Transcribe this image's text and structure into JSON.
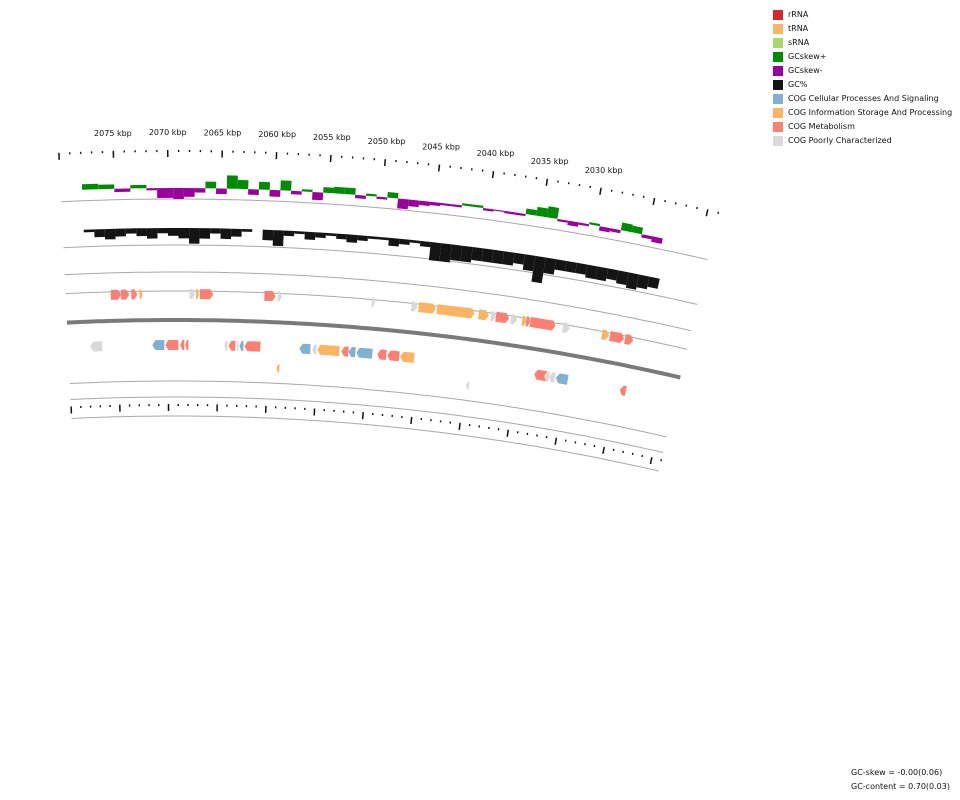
{
  "legend": [
    {
      "label": "rRNA",
      "color": "#d62728"
    },
    {
      "label": "tRNA",
      "color": "#fdb462"
    },
    {
      "label": "sRNA",
      "color": "#a6d96a"
    },
    {
      "label": "GCskew+",
      "color": "#008c00"
    },
    {
      "label": "GCskew-",
      "color": "#99009c"
    },
    {
      "label": "GC%",
      "color": "#141414"
    },
    {
      "label": "COG Cellular Processes And Signaling",
      "color": "#80b1d3"
    },
    {
      "label": "COG Information Storage And Processing",
      "color": "#fdb462"
    },
    {
      "label": "COG Metabolism",
      "color": "#fb8072"
    },
    {
      "label": "COG Poorly Characterized",
      "color": "#d9d9d9"
    }
  ],
  "ticks": [
    {
      "label": "2075 kbp",
      "pos": 2075
    },
    {
      "label": "2070 kbp",
      "pos": 2070
    },
    {
      "label": "2065 kbp",
      "pos": 2065
    },
    {
      "label": "2060 kbp",
      "pos": 2060
    },
    {
      "label": "2055 kbp",
      "pos": 2055
    },
    {
      "label": "2050 kbp",
      "pos": 2050
    },
    {
      "label": "2045 kbp",
      "pos": 2045
    },
    {
      "label": "2040 kbp",
      "pos": 2040
    },
    {
      "label": "2035 kbp",
      "pos": 2035
    },
    {
      "label": "2030 kbp",
      "pos": 2030
    }
  ],
  "features": {
    "forward": [
      {
        "start": 2075.6,
        "end": 2074.6,
        "cog": "COG Metabolism"
      },
      {
        "start": 2074.6,
        "end": 2073.8,
        "cog": "COG Metabolism"
      },
      {
        "start": 2073.6,
        "end": 2073.0,
        "cog": "COG Metabolism"
      },
      {
        "start": 2072.8,
        "end": 2072.5,
        "cog": "COG Information Storage And Processing"
      },
      {
        "start": 2067.9,
        "end": 2067.4,
        "cog": "COG Poorly Characterized"
      },
      {
        "start": 2067.3,
        "end": 2067.0,
        "cog": "COG Information Storage And Processing"
      },
      {
        "start": 2066.9,
        "end": 2065.6,
        "cog": "COG Metabolism"
      },
      {
        "start": 2060.6,
        "end": 2059.5,
        "cog": "COG Metabolism"
      },
      {
        "start": 2059.3,
        "end": 2058.9,
        "cog": "COG Poorly Characterized"
      },
      {
        "start": 2050.1,
        "end": 2049.8,
        "cog": "COG Poorly Characterized"
      },
      {
        "start": 2046.2,
        "end": 2045.6,
        "cog": "COG Poorly Characterized"
      },
      {
        "start": 2045.5,
        "end": 2043.8,
        "cog": "COG Information Storage And Processing"
      },
      {
        "start": 2043.7,
        "end": 2040.0,
        "cog": "COG Information Storage And Processing"
      },
      {
        "start": 2039.6,
        "end": 2038.6,
        "cog": "COG Information Storage And Processing"
      },
      {
        "start": 2038.4,
        "end": 2037.9,
        "cog": "COG Poorly Characterized"
      },
      {
        "start": 2037.9,
        "end": 2036.6,
        "cog": "COG Metabolism"
      },
      {
        "start": 2036.4,
        "end": 2035.8,
        "cog": "COG Poorly Characterized"
      },
      {
        "start": 2035.3,
        "end": 2034.9,
        "cog": "COG Information Storage And Processing"
      },
      {
        "start": 2034.9,
        "end": 2034.5,
        "cog": "COG Metabolism"
      },
      {
        "start": 2034.5,
        "end": 2032.0,
        "cog": "COG Metabolism"
      },
      {
        "start": 2031.3,
        "end": 2030.6,
        "cog": "COG Poorly Characterized"
      },
      {
        "start": 2027.4,
        "end": 2026.7,
        "cog": "COG Information Storage And Processing"
      },
      {
        "start": 2026.6,
        "end": 2025.2,
        "cog": "COG Metabolism"
      },
      {
        "start": 2025.1,
        "end": 2024.3,
        "cog": "COG Metabolism"
      }
    ],
    "reverse": [
      {
        "start": 2077.8,
        "end": 2076.6,
        "cog": "COG Poorly Characterized"
      },
      {
        "start": 2071.6,
        "end": 2070.4,
        "cog": "COG Cellular Processes And Signaling"
      },
      {
        "start": 2070.3,
        "end": 2069.0,
        "cog": "COG Metabolism"
      },
      {
        "start": 2068.8,
        "end": 2068.4,
        "cog": "COG Metabolism"
      },
      {
        "start": 2068.3,
        "end": 2068.0,
        "cog": "COG Metabolism"
      },
      {
        "start": 2064.4,
        "end": 2064.1,
        "cog": "COG Poorly Characterized"
      },
      {
        "start": 2064.0,
        "end": 2063.3,
        "cog": "COG Metabolism"
      },
      {
        "start": 2063.2,
        "end": 2063.0,
        "cog": "COG Poorly Characterized"
      },
      {
        "start": 2062.9,
        "end": 2062.5,
        "cog": "COG Cellular Processes And Signaling"
      },
      {
        "start": 2062.4,
        "end": 2060.8,
        "cog": "COG Metabolism"
      },
      {
        "start": 2056.9,
        "end": 2055.8,
        "cog": "COG Cellular Processes And Signaling"
      },
      {
        "start": 2055.6,
        "end": 2055.2,
        "cog": "COG Poorly Characterized"
      },
      {
        "start": 2055.1,
        "end": 2052.9,
        "cog": "COG Information Storage And Processing"
      },
      {
        "start": 2052.7,
        "end": 2052.0,
        "cog": "COG Metabolism"
      },
      {
        "start": 2052.0,
        "end": 2051.3,
        "cog": "COG Cellular Processes And Signaling"
      },
      {
        "start": 2051.2,
        "end": 2049.6,
        "cog": "COG Cellular Processes And Signaling"
      },
      {
        "start": 2049.1,
        "end": 2048.2,
        "cog": "COG Metabolism"
      },
      {
        "start": 2048.1,
        "end": 2046.9,
        "cog": "COG Metabolism"
      },
      {
        "start": 2046.8,
        "end": 2045.4,
        "cog": "COG Information Storage And Processing"
      },
      {
        "start": 2033.3,
        "end": 2032.0,
        "cog": "COG Metabolism"
      },
      {
        "start": 2032.3,
        "end": 2031.8,
        "cog": "COG Poorly Characterized"
      },
      {
        "start": 2031.8,
        "end": 2031.2,
        "cog": "COG Poorly Characterized"
      },
      {
        "start": 2031.1,
        "end": 2029.9,
        "cog": "COG Cellular Processes And Signaling"
      },
      {
        "start": 2024.6,
        "end": 2024.0,
        "cog": "COG Metabolism"
      }
    ],
    "other": [
      {
        "start": 2059.1,
        "end": 2058.8,
        "cog": "COG Information Storage And Processing"
      },
      {
        "start": 2039.9,
        "end": 2039.6,
        "cog": "COG Poorly Characterized"
      }
    ]
  },
  "gc_skew": [
    {
      "kbp": 2078.0,
      "value": 0.05
    },
    {
      "kbp": 2076.5,
      "value": 0.04
    },
    {
      "kbp": 2075.0,
      "value": -0.03
    },
    {
      "kbp": 2073.5,
      "value": 0.03
    },
    {
      "kbp": 2072.0,
      "value": -0.02
    },
    {
      "kbp": 2071.0,
      "value": -0.09
    },
    {
      "kbp": 2069.5,
      "value": -0.1
    },
    {
      "kbp": 2068.5,
      "value": -0.08
    },
    {
      "kbp": 2067.5,
      "value": -0.04
    },
    {
      "kbp": 2066.5,
      "value": 0.06
    },
    {
      "kbp": 2065.5,
      "value": -0.05
    },
    {
      "kbp": 2064.5,
      "value": 0.12
    },
    {
      "kbp": 2063.5,
      "value": 0.08
    },
    {
      "kbp": 2062.5,
      "value": -0.05
    },
    {
      "kbp": 2061.5,
      "value": 0.07
    },
    {
      "kbp": 2060.5,
      "value": -0.06
    },
    {
      "kbp": 2059.5,
      "value": 0.09
    },
    {
      "kbp": 2058.5,
      "value": -0.03
    },
    {
      "kbp": 2057.5,
      "value": 0.02
    },
    {
      "kbp": 2056.5,
      "value": -0.07
    },
    {
      "kbp": 2055.5,
      "value": 0.05
    },
    {
      "kbp": 2054.5,
      "value": 0.06
    },
    {
      "kbp": 2053.5,
      "value": 0.06
    },
    {
      "kbp": 2052.5,
      "value": -0.03
    },
    {
      "kbp": 2051.5,
      "value": 0.02
    },
    {
      "kbp": 2050.5,
      "value": -0.02
    },
    {
      "kbp": 2049.5,
      "value": 0.05
    },
    {
      "kbp": 2048.5,
      "value": -0.09
    },
    {
      "kbp": 2047.5,
      "value": -0.06
    },
    {
      "kbp": 2046.5,
      "value": -0.04
    },
    {
      "kbp": 2045.5,
      "value": -0.03
    },
    {
      "kbp": 2044.5,
      "value": -0.02
    },
    {
      "kbp": 2043.5,
      "value": -0.02
    },
    {
      "kbp": 2042.5,
      "value": 0.02
    },
    {
      "kbp": 2041.5,
      "value": 0.02
    },
    {
      "kbp": 2040.5,
      "value": -0.02
    },
    {
      "kbp": 2039.5,
      "value": -0.01
    },
    {
      "kbp": 2038.5,
      "value": -0.02
    },
    {
      "kbp": 2037.5,
      "value": -0.02
    },
    {
      "kbp": 2036.5,
      "value": 0.05
    },
    {
      "kbp": 2035.5,
      "value": 0.08
    },
    {
      "kbp": 2034.5,
      "value": 0.1
    },
    {
      "kbp": 2033.5,
      "value": -0.02
    },
    {
      "kbp": 2032.5,
      "value": -0.04
    },
    {
      "kbp": 2031.5,
      "value": -0.02
    },
    {
      "kbp": 2030.5,
      "value": 0.02
    },
    {
      "kbp": 2029.5,
      "value": -0.04
    },
    {
      "kbp": 2028.5,
      "value": -0.03
    },
    {
      "kbp": 2027.5,
      "value": 0.07
    },
    {
      "kbp": 2026.5,
      "value": 0.06
    },
    {
      "kbp": 2025.5,
      "value": -0.03
    },
    {
      "kbp": 2024.5,
      "value": -0.05
    }
  ],
  "gc_content": [
    {
      "kbp": 2078.0,
      "value": 0.69
    },
    {
      "kbp": 2077.0,
      "value": 0.67
    },
    {
      "kbp": 2076.0,
      "value": 0.66
    },
    {
      "kbp": 2075.0,
      "value": 0.67
    },
    {
      "kbp": 2074.0,
      "value": 0.68
    },
    {
      "kbp": 2073.0,
      "value": 0.67
    },
    {
      "kbp": 2072.0,
      "value": 0.66
    },
    {
      "kbp": 2071.0,
      "value": 0.68
    },
    {
      "kbp": 2070.0,
      "value": 0.67
    },
    {
      "kbp": 2069.0,
      "value": 0.66
    },
    {
      "kbp": 2068.0,
      "value": 0.64
    },
    {
      "kbp": 2067.0,
      "value": 0.66
    },
    {
      "kbp": 2066.0,
      "value": 0.68
    },
    {
      "kbp": 2065.0,
      "value": 0.66
    },
    {
      "kbp": 2064.0,
      "value": 0.67
    },
    {
      "kbp": 2063.0,
      "value": 0.69
    },
    {
      "kbp": 2062.0,
      "value": 0.7
    },
    {
      "kbp": 2061.0,
      "value": 0.66
    },
    {
      "kbp": 2060.0,
      "value": 0.64
    },
    {
      "kbp": 2059.0,
      "value": 0.68
    },
    {
      "kbp": 2058.0,
      "value": 0.69
    },
    {
      "kbp": 2057.0,
      "value": 0.67
    },
    {
      "kbp": 2056.0,
      "value": 0.68
    },
    {
      "kbp": 2055.0,
      "value": 0.69
    },
    {
      "kbp": 2054.0,
      "value": 0.68
    },
    {
      "kbp": 2053.0,
      "value": 0.67
    },
    {
      "kbp": 2052.0,
      "value": 0.68
    },
    {
      "kbp": 2051.0,
      "value": 0.69
    },
    {
      "kbp": 2050.0,
      "value": 0.69
    },
    {
      "kbp": 2049.0,
      "value": 0.67
    },
    {
      "kbp": 2048.0,
      "value": 0.68
    },
    {
      "kbp": 2047.0,
      "value": 0.69
    },
    {
      "kbp": 2046.0,
      "value": 0.68
    },
    {
      "kbp": 2045.0,
      "value": 0.63
    },
    {
      "kbp": 2044.0,
      "value": 0.63
    },
    {
      "kbp": 2043.0,
      "value": 0.64
    },
    {
      "kbp": 2042.0,
      "value": 0.64
    },
    {
      "kbp": 2041.0,
      "value": 0.65
    },
    {
      "kbp": 2040.0,
      "value": 0.65
    },
    {
      "kbp": 2039.0,
      "value": 0.65
    },
    {
      "kbp": 2038.0,
      "value": 0.65
    },
    {
      "kbp": 2037.0,
      "value": 0.66
    },
    {
      "kbp": 2036.0,
      "value": 0.64
    },
    {
      "kbp": 2035.0,
      "value": 0.6
    },
    {
      "kbp": 2034.0,
      "value": 0.64
    },
    {
      "kbp": 2033.0,
      "value": 0.66
    },
    {
      "kbp": 2032.0,
      "value": 0.66
    },
    {
      "kbp": 2031.0,
      "value": 0.66
    },
    {
      "kbp": 2030.0,
      "value": 0.65
    },
    {
      "kbp": 2029.0,
      "value": 0.65
    },
    {
      "kbp": 2028.0,
      "value": 0.66
    },
    {
      "kbp": 2027.0,
      "value": 0.65
    },
    {
      "kbp": 2026.0,
      "value": 0.64
    },
    {
      "kbp": 2025.0,
      "value": 0.65
    },
    {
      "kbp": 2024.0,
      "value": 0.66
    }
  ],
  "stats": {
    "gc_skew": "GC-skew = -0.00(0.06)",
    "gc_content": "GC-content = 0.70(0.03)"
  }
}
